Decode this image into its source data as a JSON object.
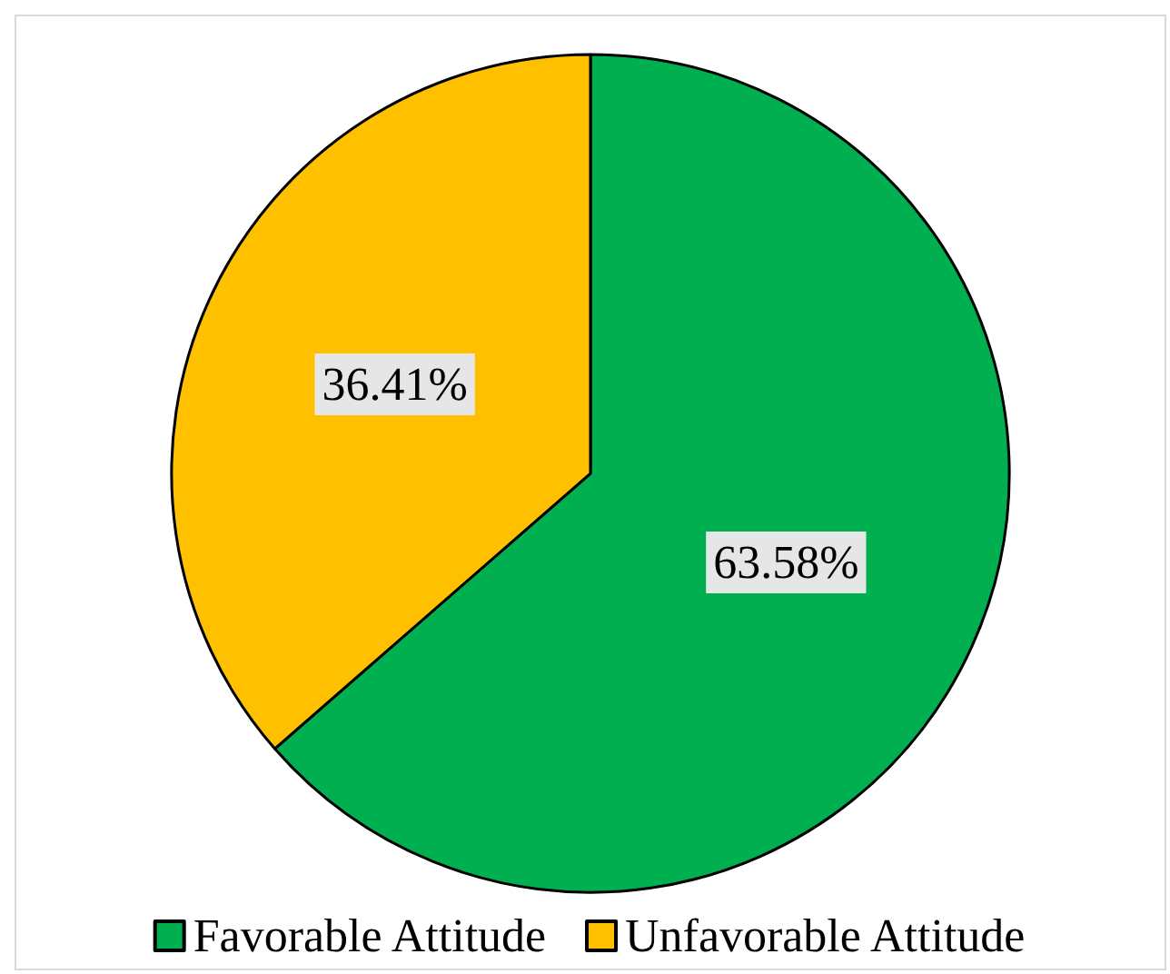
{
  "chart_data": {
    "type": "pie",
    "categories": [
      "Favorable Attitude",
      "Unfavorable Attitude"
    ],
    "values": [
      63.58,
      36.41
    ],
    "colors": [
      "#00b050",
      "#ffc000"
    ],
    "value_labels": [
      "63.58%",
      "36.41%"
    ],
    "legend": "bottom"
  }
}
